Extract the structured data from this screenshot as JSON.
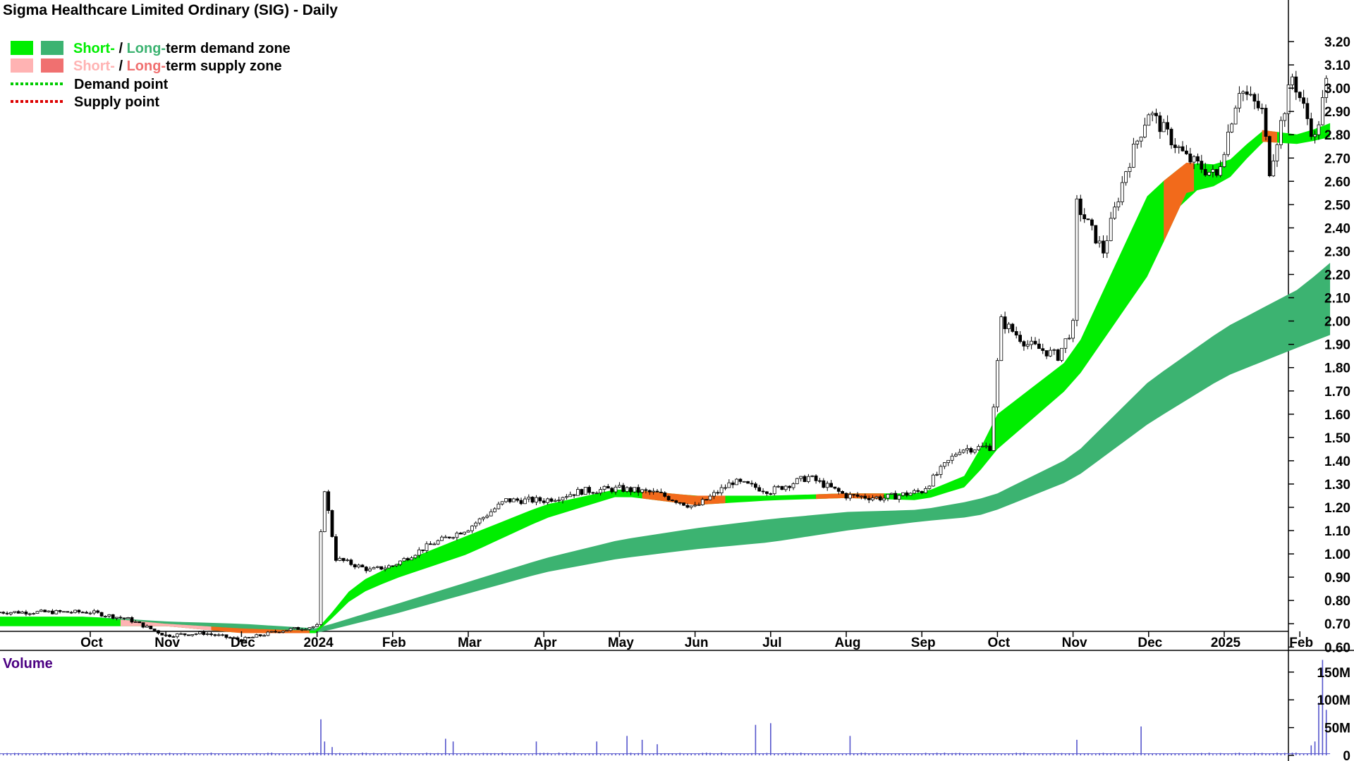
{
  "title": "Sigma Healthcare Limited Ordinary (SIG) - Daily",
  "legend": {
    "demand_zone": {
      "short": "Short-",
      "sep": " / ",
      "long": "Long-",
      "rest": "term demand zone"
    },
    "supply_zone": {
      "short": "Short-",
      "sep": " / ",
      "long": "Long-",
      "rest": "term supply zone"
    },
    "demand_point": "Demand point",
    "supply_point": "Supply point"
  },
  "colors": {
    "short_demand": "#00ee00",
    "long_demand": "#3cb371",
    "short_supply": "#ffb3b3",
    "long_supply": "#f07070",
    "supply_band": "#f26a1b",
    "demand_point": "#00cc00",
    "supply_point": "#dd0000",
    "volume": "#5555cc",
    "volume_title": "#4b0082"
  },
  "volume_label": "Volume",
  "chart_data": {
    "type": "candlestick",
    "title": "Sigma Healthcare Limited Ordinary (SIG) - Daily",
    "x_tick_labels": [
      "Oct",
      "Nov",
      "Dec",
      "2024",
      "Feb",
      "Mar",
      "Apr",
      "May",
      "Jun",
      "Jul",
      "Aug",
      "Sep",
      "Oct",
      "Nov",
      "Dec",
      "2025",
      "Feb"
    ],
    "y_tick_labels": [
      "3.20",
      "3.10",
      "3.00",
      "2.90",
      "2.80",
      "2.70",
      "2.60",
      "2.50",
      "2.40",
      "2.30",
      "2.20",
      "2.10",
      "2.00",
      "1.90",
      "1.80",
      "1.70",
      "1.60",
      "1.50",
      "1.40",
      "1.30",
      "1.20",
      "1.10",
      "1.00",
      "0.90",
      "0.80",
      "0.70",
      "0.60"
    ],
    "ylim": [
      0.56,
      3.26
    ],
    "price_anchors": [
      {
        "m": 0,
        "p": 0.75
      },
      {
        "m": 0.5,
        "p": 0.72
      },
      {
        "m": 1,
        "p": 0.65
      },
      {
        "m": 1.5,
        "p": 0.66
      },
      {
        "m": 2,
        "p": 0.63
      },
      {
        "m": 2.5,
        "p": 0.67
      },
      {
        "m": 3,
        "p": 0.69
      },
      {
        "m": 3.08,
        "p": 1.32
      },
      {
        "m": 3.25,
        "p": 0.98
      },
      {
        "m": 3.7,
        "p": 0.93
      },
      {
        "m": 4,
        "p": 0.95
      },
      {
        "m": 4.5,
        "p": 1.04
      },
      {
        "m": 5,
        "p": 1.11
      },
      {
        "m": 5.5,
        "p": 1.23
      },
      {
        "m": 6,
        "p": 1.23
      },
      {
        "m": 6.5,
        "p": 1.27
      },
      {
        "m": 7,
        "p": 1.28
      },
      {
        "m": 7.5,
        "p": 1.26
      },
      {
        "m": 8,
        "p": 1.2
      },
      {
        "m": 8.5,
        "p": 1.31
      },
      {
        "m": 9,
        "p": 1.27
      },
      {
        "m": 9.5,
        "p": 1.33
      },
      {
        "m": 10,
        "p": 1.25
      },
      {
        "m": 10.5,
        "p": 1.24
      },
      {
        "m": 11,
        "p": 1.27
      },
      {
        "m": 11.5,
        "p": 1.45
      },
      {
        "m": 11.9,
        "p": 1.46
      },
      {
        "m": 12.05,
        "p": 2.0
      },
      {
        "m": 12.4,
        "p": 1.9
      },
      {
        "m": 12.8,
        "p": 1.85
      },
      {
        "m": 13,
        "p": 1.98
      },
      {
        "m": 13.05,
        "p": 2.5
      },
      {
        "m": 13.4,
        "p": 2.3
      },
      {
        "m": 13.7,
        "p": 2.65
      },
      {
        "m": 14,
        "p": 2.9
      },
      {
        "m": 14.5,
        "p": 2.7
      },
      {
        "m": 14.9,
        "p": 2.62
      },
      {
        "m": 15.2,
        "p": 3.0
      },
      {
        "m": 15.5,
        "p": 2.9
      },
      {
        "m": 15.6,
        "p": 2.65
      },
      {
        "m": 15.9,
        "p": 3.05
      },
      {
        "m": 16.2,
        "p": 2.78
      },
      {
        "m": 16.4,
        "p": 3.1
      }
    ],
    "zone_anchors": {
      "short_top": [
        [
          0,
          0.73
        ],
        [
          1,
          0.7
        ],
        [
          2,
          0.68
        ],
        [
          3,
          0.67
        ],
        [
          3.5,
          0.87
        ],
        [
          4,
          0.95
        ],
        [
          5,
          1.08
        ],
        [
          6,
          1.21
        ],
        [
          7,
          1.28
        ],
        [
          8,
          1.25
        ],
        [
          9,
          1.25
        ],
        [
          10,
          1.26
        ],
        [
          11,
          1.26
        ],
        [
          11.6,
          1.34
        ],
        [
          12,
          1.6
        ],
        [
          13,
          1.85
        ],
        [
          14,
          2.55
        ],
        [
          14.5,
          2.68
        ],
        [
          15,
          2.67
        ],
        [
          15.5,
          2.82
        ],
        [
          16,
          2.8
        ],
        [
          16.4,
          2.85
        ]
      ],
      "short_bot": [
        [
          0,
          0.69
        ],
        [
          1,
          0.69
        ],
        [
          2,
          0.66
        ],
        [
          3,
          0.66
        ],
        [
          3.5,
          0.82
        ],
        [
          4,
          0.89
        ],
        [
          5,
          1.0
        ],
        [
          6,
          1.15
        ],
        [
          7,
          1.25
        ],
        [
          8,
          1.21
        ],
        [
          9,
          1.23
        ],
        [
          10,
          1.24
        ],
        [
          11,
          1.23
        ],
        [
          11.6,
          1.29
        ],
        [
          12,
          1.45
        ],
        [
          13,
          1.73
        ],
        [
          14,
          2.2
        ],
        [
          14.5,
          2.55
        ],
        [
          15,
          2.59
        ],
        [
          15.5,
          2.77
        ],
        [
          16,
          2.76
        ],
        [
          16.4,
          2.79
        ]
      ],
      "long_top": [
        [
          0,
          0.73
        ],
        [
          1,
          0.71
        ],
        [
          2,
          0.7
        ],
        [
          3,
          0.68
        ],
        [
          4,
          0.78
        ],
        [
          5,
          0.88
        ],
        [
          6,
          0.98
        ],
        [
          7,
          1.06
        ],
        [
          8,
          1.11
        ],
        [
          9,
          1.15
        ],
        [
          10,
          1.18
        ],
        [
          11,
          1.19
        ],
        [
          11.7,
          1.23
        ],
        [
          12,
          1.26
        ],
        [
          13,
          1.42
        ],
        [
          14,
          1.74
        ],
        [
          15,
          1.97
        ],
        [
          16,
          2.14
        ],
        [
          16.4,
          2.25
        ]
      ],
      "long_bot": [
        [
          0,
          0.69
        ],
        [
          1,
          0.69
        ],
        [
          2,
          0.68
        ],
        [
          3,
          0.66
        ],
        [
          4,
          0.74
        ],
        [
          5,
          0.83
        ],
        [
          6,
          0.92
        ],
        [
          7,
          0.98
        ],
        [
          8,
          1.02
        ],
        [
          9,
          1.05
        ],
        [
          10,
          1.1
        ],
        [
          11,
          1.14
        ],
        [
          11.7,
          1.16
        ],
        [
          12,
          1.19
        ],
        [
          13,
          1.32
        ],
        [
          14,
          1.56
        ],
        [
          15,
          1.76
        ],
        [
          16,
          1.89
        ],
        [
          16.4,
          1.94
        ]
      ]
    },
    "supply_intervals_months": [
      [
        0.7,
        2.9
      ],
      [
        7.3,
        8.4
      ],
      [
        9.6,
        10.5
      ],
      [
        14.2,
        14.6
      ],
      [
        15.5,
        15.7
      ]
    ],
    "volume": {
      "y_tick_labels": [
        "150M",
        "100M",
        "50M",
        "0"
      ],
      "ylim": [
        0,
        175
      ],
      "baseline": 2,
      "spikes": [
        {
          "m": 3.05,
          "v": 65
        },
        {
          "m": 3.12,
          "v": 25
        },
        {
          "m": 3.2,
          "v": 15
        },
        {
          "m": 4.7,
          "v": 30
        },
        {
          "m": 4.8,
          "v": 25
        },
        {
          "m": 5.9,
          "v": 25
        },
        {
          "m": 6.7,
          "v": 25
        },
        {
          "m": 7.1,
          "v": 35
        },
        {
          "m": 7.3,
          "v": 28
        },
        {
          "m": 7.5,
          "v": 20
        },
        {
          "m": 8.8,
          "v": 55
        },
        {
          "m": 9.0,
          "v": 58
        },
        {
          "m": 10.05,
          "v": 35
        },
        {
          "m": 13.05,
          "v": 28
        },
        {
          "m": 13.9,
          "v": 52
        },
        {
          "m": 16.2,
          "v": 25
        },
        {
          "m": 16.3,
          "v": 172
        },
        {
          "m": 16.25,
          "v": 95
        },
        {
          "m": 16.35,
          "v": 82
        },
        {
          "m": 16.15,
          "v": 18
        }
      ]
    }
  }
}
